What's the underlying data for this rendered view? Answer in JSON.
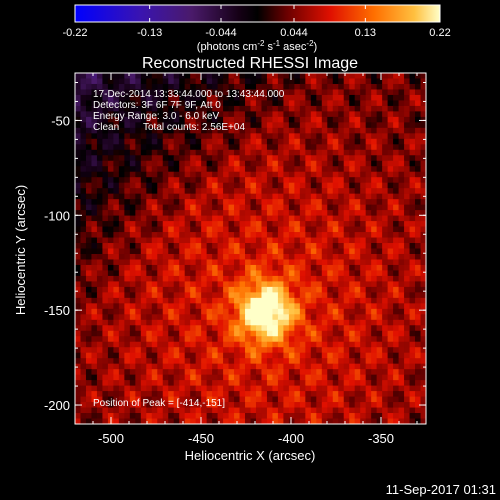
{
  "chart_data": {
    "type": "heatmap",
    "title": "Reconstructed RHESSI Image",
    "xlabel": "Heliocentric X (arcsec)",
    "ylabel": "Heliocentric Y (arcsec)",
    "xlim": [
      -520,
      -325
    ],
    "ylim": [
      -210,
      -25
    ],
    "x_ticks": [
      "-500",
      "-450",
      "-400",
      "-350"
    ],
    "y_ticks": [
      "-50",
      "-100",
      "-150",
      "-200"
    ],
    "x_tick_values": [
      -500,
      -450,
      -400,
      -350
    ],
    "y_tick_values": [
      -50,
      -100,
      -150,
      -200
    ],
    "colorbar": {
      "min": -0.22,
      "max": 0.22,
      "ticks": [
        "-0.22",
        "-0.13",
        "-0.044",
        "0.044",
        "0.13",
        "0.22"
      ],
      "tick_values": [
        -0.22,
        -0.13,
        -0.044,
        0.044,
        0.13,
        0.22
      ],
      "label_base": "(photons cm",
      "label_exp1": "-2",
      "label_mid": " s",
      "label_exp2": "-1",
      "label_end": " asec",
      "label_exp3": "-2",
      "label_close": ")",
      "colors": [
        "#0000ff",
        "#5a1a7a",
        "#200020",
        "#000000",
        "#7a0000",
        "#ff2000",
        "#ffa000",
        "#ffffa0"
      ]
    },
    "peak": {
      "x": -414,
      "y": -151
    },
    "annotations": {
      "line1": "17-Dec-2014 13:33:44.000 to 13:43:44.000",
      "line2": "Detectors: 3F 6F 7F 9F, Att 0",
      "line3": "Energy Range: 3.0 - 6.0 keV",
      "line4_left": "Clean",
      "line4_right": "Total counts: 2.56E+04",
      "peak_text": "Position of Peak = [-414,-151]"
    }
  },
  "footer": {
    "timestamp": "11-Sep-2017 01:31"
  }
}
